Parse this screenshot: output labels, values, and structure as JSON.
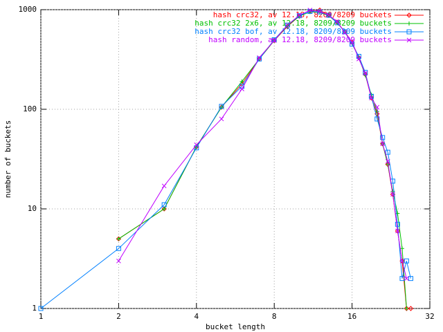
{
  "chart_data": {
    "type": "line",
    "xlabel": "bucket length",
    "ylabel": "number of buckets",
    "xscale": "log2",
    "yscale": "log10",
    "xlim": [
      1,
      32
    ],
    "ylim": [
      1,
      1000
    ],
    "xticks": [
      1,
      2,
      4,
      8,
      16,
      32
    ],
    "yticks": [
      1,
      10,
      100,
      1000
    ],
    "grid": true,
    "legend": "top-right",
    "series": [
      {
        "name": "hash crc32, av 12.18, 8209/8209 buckets",
        "color": "#ff0000",
        "marker": "diamond",
        "x": [
          2,
          3,
          4,
          5,
          6,
          7,
          8,
          9,
          10,
          11,
          12,
          13,
          14,
          15,
          16,
          17,
          18,
          19,
          20,
          21,
          22,
          23,
          24,
          25,
          26,
          27
        ],
        "values": [
          5,
          10,
          42,
          105,
          180,
          320,
          490,
          680,
          860,
          960,
          990,
          880,
          750,
          600,
          470,
          330,
          225,
          130,
          90,
          45,
          28,
          14,
          6,
          3,
          1,
          1
        ]
      },
      {
        "name": "hash crc32 2x6, av 12.18, 8209/8209 buckets",
        "color": "#00c000",
        "marker": "plus",
        "x": [
          2,
          3,
          4,
          5,
          6,
          7,
          8,
          9,
          10,
          11,
          12,
          13,
          14,
          15,
          16,
          17,
          18,
          19,
          20,
          21,
          22,
          23,
          24,
          25,
          26
        ],
        "values": [
          5,
          10,
          42,
          105,
          190,
          320,
          490,
          690,
          860,
          950,
          940,
          870,
          740,
          600,
          460,
          330,
          220,
          140,
          95,
          45,
          28,
          15,
          9,
          4,
          1
        ]
      },
      {
        "name": "hash crc32 bof, av 12.18, 8209/8209 buckets",
        "color": "#0080ff",
        "marker": "square",
        "x": [
          1,
          2,
          3,
          4,
          5,
          6,
          7,
          8,
          9,
          10,
          11,
          12,
          13,
          14,
          15,
          16,
          17,
          18,
          19,
          20,
          21,
          22,
          23,
          24,
          25,
          26,
          27
        ],
        "values": [
          1,
          4,
          11,
          41,
          107,
          170,
          320,
          500,
          700,
          870,
          960,
          950,
          880,
          740,
          600,
          450,
          340,
          235,
          135,
          80,
          52,
          37,
          19,
          7,
          2,
          3,
          2
        ]
      },
      {
        "name": "hash random, av 12.18, 8209/8209 buckets",
        "color": "#c000ff",
        "marker": "cross",
        "x": [
          2,
          3,
          4,
          5,
          6,
          7,
          8,
          9,
          10,
          11,
          12,
          13,
          14,
          15,
          16,
          17,
          18,
          19,
          20,
          21,
          22,
          23,
          24,
          25,
          26
        ],
        "values": [
          3,
          17,
          44,
          80,
          160,
          330,
          490,
          700,
          880,
          990,
          960,
          880,
          760,
          590,
          470,
          320,
          230,
          130,
          105,
          45,
          30,
          14,
          6,
          3,
          2
        ]
      }
    ]
  }
}
